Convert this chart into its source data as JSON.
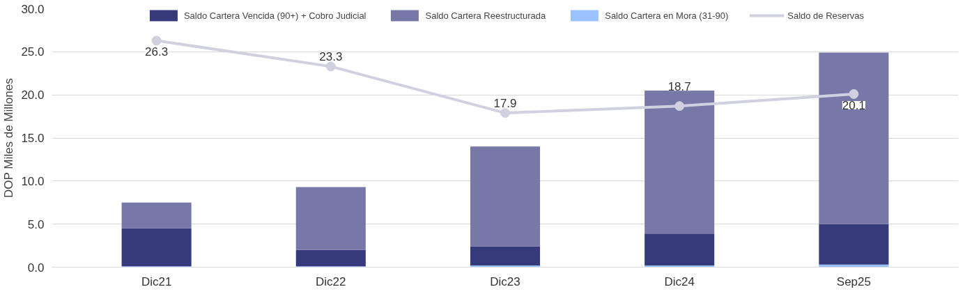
{
  "chart_data": {
    "type": "bar",
    "stacked": true,
    "ylabel": "DOP Miles de Millones",
    "categories": [
      "Dic21",
      "Dic22",
      "Dic23",
      "Dic24",
      "Sep25"
    ],
    "series": [
      {
        "name": "Saldo Cartera en Mora (31-90)",
        "color": "#99c2ff",
        "values": [
          0.1,
          0.1,
          0.2,
          0.2,
          0.3
        ]
      },
      {
        "name": "Saldo Cartera Vencida (90+) + Cobro Judicial",
        "color": "#363a7a",
        "values": [
          4.4,
          1.9,
          2.2,
          3.7,
          4.7
        ]
      },
      {
        "name": "Saldo Cartera Reestructurada",
        "color": "#7777a8",
        "values": [
          3.0,
          7.3,
          11.6,
          16.6,
          19.9
        ]
      },
      {
        "name": "Saldo de Reservas",
        "type": "line",
        "color": "#d0d0e0",
        "marker": "circle",
        "values": [
          26.3,
          23.3,
          17.9,
          18.7,
          20.1
        ],
        "value_labels": [
          "26.3",
          "23.3",
          "17.9",
          "18.7",
          "20.1"
        ]
      }
    ],
    "ylim": [
      0,
      30
    ],
    "yticks": [
      {
        "value": 0,
        "label": "0.0"
      },
      {
        "value": 5,
        "label": "5.0"
      },
      {
        "value": 10,
        "label": "10.0"
      },
      {
        "value": 15,
        "label": "15.0"
      },
      {
        "value": 20,
        "label": "20.0"
      },
      {
        "value": 25,
        "label": "25.0"
      },
      {
        "value": 30,
        "label": "30.0"
      }
    ],
    "grid": "y",
    "legend": "top"
  }
}
